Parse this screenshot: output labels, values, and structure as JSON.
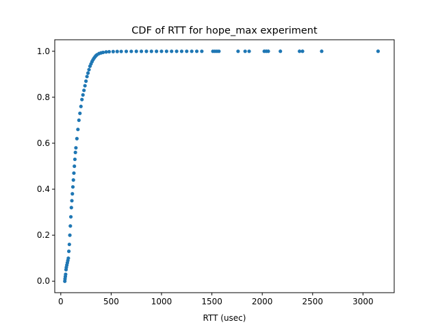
{
  "chart_data": {
    "type": "scatter",
    "title": "CDF of RTT for hope_max experiment",
    "xlabel": "RTT (usec)",
    "ylabel": "",
    "xlim": [
      -60,
      3310
    ],
    "ylim": [
      -0.05,
      1.05
    ],
    "xticks": [
      0,
      500,
      1000,
      1500,
      2000,
      2500,
      3000
    ],
    "xtick_labels": [
      "0",
      "500",
      "1000",
      "1500",
      "2000",
      "2500",
      "3000"
    ],
    "yticks": [
      0.0,
      0.2,
      0.4,
      0.6,
      0.8,
      1.0
    ],
    "ytick_labels": [
      "0.0",
      "0.2",
      "0.4",
      "0.6",
      "0.8",
      "1.0"
    ],
    "grid": false,
    "color": "#1f77b4",
    "series": [
      {
        "x": [
          40,
          42,
          45,
          48,
          52,
          55,
          60,
          65,
          70,
          75,
          80,
          85,
          90,
          95,
          100,
          105,
          110,
          115,
          120,
          125,
          130,
          135,
          140,
          145,
          150,
          160,
          170,
          180,
          190,
          200,
          210,
          220,
          230,
          240,
          250,
          260,
          270,
          280,
          290,
          300,
          310,
          320,
          330,
          340,
          350,
          360,
          380,
          400,
          420,
          450,
          480,
          520,
          560,
          600,
          650,
          700,
          750,
          800,
          850,
          900,
          950,
          1000,
          1050,
          1100,
          1150,
          1200,
          1250,
          1300,
          1350,
          1400,
          1510,
          1530,
          1550,
          1570,
          1760,
          1830,
          1870,
          2020,
          2040,
          2060,
          2180,
          2370,
          2400,
          2590,
          3150
        ],
        "y": [
          0.0,
          0.01,
          0.02,
          0.03,
          0.05,
          0.06,
          0.07,
          0.08,
          0.09,
          0.1,
          0.13,
          0.16,
          0.2,
          0.24,
          0.28,
          0.32,
          0.35,
          0.38,
          0.41,
          0.44,
          0.47,
          0.5,
          0.53,
          0.56,
          0.58,
          0.62,
          0.66,
          0.7,
          0.73,
          0.76,
          0.79,
          0.81,
          0.83,
          0.85,
          0.87,
          0.89,
          0.905,
          0.92,
          0.935,
          0.945,
          0.955,
          0.963,
          0.97,
          0.976,
          0.981,
          0.985,
          0.99,
          0.993,
          0.995,
          0.997,
          0.998,
          0.9985,
          0.999,
          0.9992,
          0.9994,
          0.9995,
          0.9996,
          0.9996,
          0.9997,
          0.9997,
          0.9997,
          0.9998,
          0.9998,
          0.9998,
          0.9998,
          0.9998,
          0.9999,
          0.9999,
          0.9999,
          0.9999,
          0.9999,
          0.9999,
          0.9999,
          0.9999,
          0.99995,
          0.99995,
          0.99995,
          0.99996,
          0.99996,
          0.99996,
          0.99997,
          0.99998,
          0.99998,
          0.99999,
          1.0
        ]
      }
    ]
  }
}
